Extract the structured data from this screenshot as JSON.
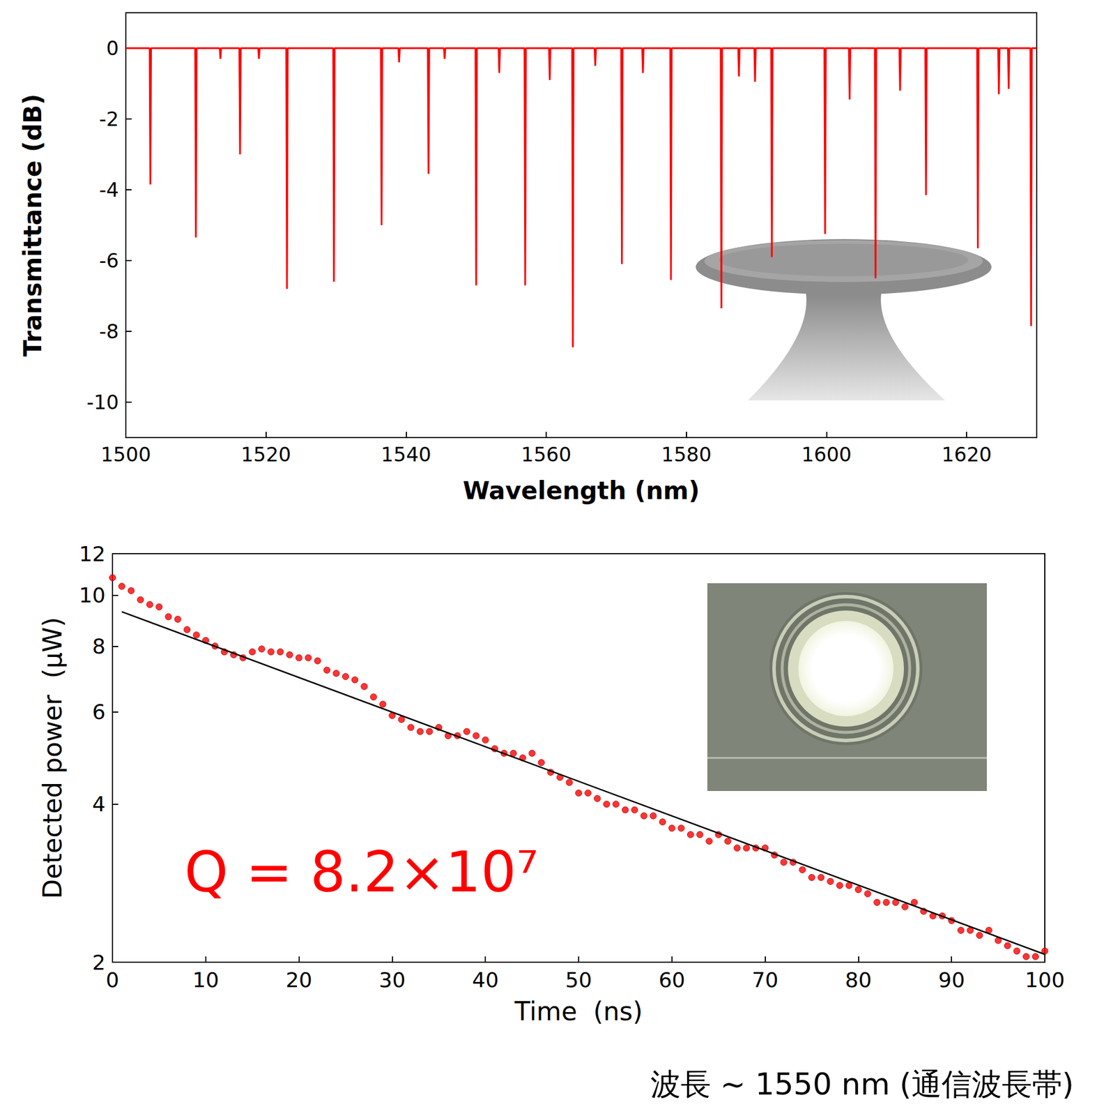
{
  "chart_data": [
    {
      "type": "line",
      "xlabel": "Wavelength (nm)",
      "ylabel": "Transmittance (dB)",
      "color": "#ff0000",
      "grid": false,
      "xlim": [
        1500,
        1630
      ],
      "xticks": [
        1500,
        1520,
        1540,
        1560,
        1580,
        1600,
        1620
      ],
      "ylim": [
        -11,
        1
      ],
      "yticks": [
        -10,
        -8,
        -6,
        -4,
        -2,
        0
      ],
      "x": [
        1500,
        1503.4,
        1503.5,
        1503.6,
        1509.9,
        1510,
        1510.1,
        1513.4,
        1513.5,
        1513.6,
        1516.2,
        1516.3,
        1516.4,
        1518.9,
        1519,
        1519.1,
        1522.9,
        1523,
        1523.1,
        1529.6,
        1529.7,
        1529.8,
        1536.4,
        1536.5,
        1536.6,
        1538.9,
        1539,
        1539.1,
        1543.1,
        1543.2,
        1543.3,
        1545.4,
        1545.5,
        1545.6,
        1549.9,
        1550,
        1550.1,
        1553.2,
        1553.3,
        1553.4,
        1556.9,
        1557,
        1557.1,
        1560.4,
        1560.5,
        1560.6,
        1563.7,
        1563.8,
        1563.9,
        1566.9,
        1567,
        1567.1,
        1570.7,
        1570.8,
        1570.9,
        1573.7,
        1573.8,
        1573.9,
        1577.7,
        1577.8,
        1577.9,
        1584.9,
        1585,
        1585.1,
        1587.4,
        1587.5,
        1587.6,
        1589.7,
        1589.8,
        1589.9,
        1592.1,
        1592.2,
        1592.3,
        1599.7,
        1599.8,
        1599.9,
        1603.2,
        1603.3,
        1603.4,
        1606.9,
        1607,
        1607.1,
        1610.4,
        1610.5,
        1610.6,
        1614.1,
        1614.2,
        1614.3,
        1621.5,
        1621.6,
        1621.7,
        1624.5,
        1624.6,
        1624.7,
        1625.9,
        1626,
        1626.1,
        1629.1,
        1629.2,
        1629.3,
        1630
      ],
      "values": [
        0,
        0,
        -3.85,
        0,
        0,
        -5.35,
        0,
        0,
        -0.3,
        0,
        0,
        -3.0,
        0,
        0,
        -0.3,
        0,
        0,
        -6.8,
        0,
        0,
        -6.6,
        0,
        0,
        -5.0,
        0,
        0,
        -0.4,
        0,
        0,
        -3.55,
        0,
        0,
        -0.3,
        0,
        0,
        -6.7,
        0,
        0,
        -0.7,
        0,
        0,
        -6.7,
        0,
        0,
        -0.9,
        0,
        0,
        -8.45,
        0,
        0,
        -0.5,
        0,
        0,
        -6.1,
        0,
        0,
        -0.7,
        0,
        0,
        -6.55,
        0,
        0,
        -7.35,
        0,
        0,
        -0.8,
        0,
        0,
        -0.95,
        0,
        0,
        -5.9,
        0,
        0,
        -5.25,
        0,
        0,
        -1.45,
        0,
        0,
        -6.5,
        0,
        0,
        -1.2,
        0,
        0,
        -4.15,
        0,
        0,
        -5.65,
        0,
        0,
        -1.3,
        0,
        0,
        -1.15,
        0,
        0,
        -7.85,
        0,
        0
      ]
    },
    {
      "type": "scatter",
      "xlabel": "Time  (ns)",
      "ylabel": "Detected power  (μW)",
      "log": "y",
      "grid": false,
      "xlim": [
        0,
        100
      ],
      "xticks": [
        0,
        10,
        20,
        30,
        40,
        50,
        60,
        70,
        80,
        90,
        100
      ],
      "ylim": [
        2,
        12
      ],
      "yticks": [
        2,
        4,
        6,
        8,
        10,
        12
      ],
      "annotations": [
        "Q = 8.2×10⁷"
      ],
      "series": [
        {
          "type": "scatter",
          "color": "#ff0000",
          "marker": "circle",
          "x": [
            0,
            1,
            2,
            3,
            4,
            5,
            6,
            7,
            8,
            9,
            10,
            11,
            12,
            13,
            14,
            15,
            16,
            17,
            18,
            19,
            20,
            21,
            22,
            23,
            24,
            25,
            26,
            27,
            28,
            29,
            30,
            31,
            32,
            33,
            34,
            35,
            36,
            37,
            38,
            39,
            40,
            41,
            42,
            43,
            44,
            45,
            46,
            47,
            48,
            49,
            50,
            51,
            52,
            53,
            54,
            55,
            56,
            57,
            58,
            59,
            60,
            61,
            62,
            63,
            64,
            65,
            66,
            67,
            68,
            69,
            70,
            71,
            72,
            73,
            74,
            75,
            76,
            77,
            78,
            79,
            80,
            81,
            82,
            83,
            84,
            85,
            86,
            87,
            88,
            89,
            90,
            91,
            92,
            93,
            94,
            95,
            96,
            97,
            98,
            99,
            100
          ],
          "values": [
            10.8,
            10.4,
            10.2,
            9.8,
            9.6,
            9.5,
            9.1,
            9.0,
            8.6,
            8.4,
            8.2,
            8.0,
            7.8,
            7.7,
            7.6,
            7.8,
            7.9,
            7.8,
            7.8,
            7.7,
            7.6,
            7.6,
            7.5,
            7.2,
            7.1,
            7.0,
            6.9,
            6.7,
            6.4,
            6.2,
            5.9,
            5.8,
            5.6,
            5.5,
            5.5,
            5.6,
            5.4,
            5.4,
            5.5,
            5.4,
            5.3,
            5.1,
            5.0,
            5.0,
            4.9,
            5.0,
            4.8,
            4.6,
            4.5,
            4.4,
            4.2,
            4.2,
            4.1,
            4.0,
            4.0,
            3.9,
            3.9,
            3.8,
            3.8,
            3.7,
            3.6,
            3.6,
            3.5,
            3.5,
            3.4,
            3.5,
            3.4,
            3.3,
            3.3,
            3.3,
            3.3,
            3.2,
            3.1,
            3.1,
            3.0,
            2.9,
            2.9,
            2.85,
            2.8,
            2.8,
            2.75,
            2.7,
            2.6,
            2.6,
            2.6,
            2.55,
            2.6,
            2.5,
            2.45,
            2.45,
            2.4,
            2.3,
            2.3,
            2.25,
            2.3,
            2.2,
            2.15,
            2.1,
            2.05,
            2.05,
            2.1
          ]
        },
        {
          "type": "line",
          "color": "#000000",
          "line_style": "solid",
          "x": [
            1,
            100
          ],
          "values": [
            9.3,
            2.07
          ]
        }
      ]
    }
  ],
  "caption": "波長 ~ 1550 nm (通信波長帯)"
}
